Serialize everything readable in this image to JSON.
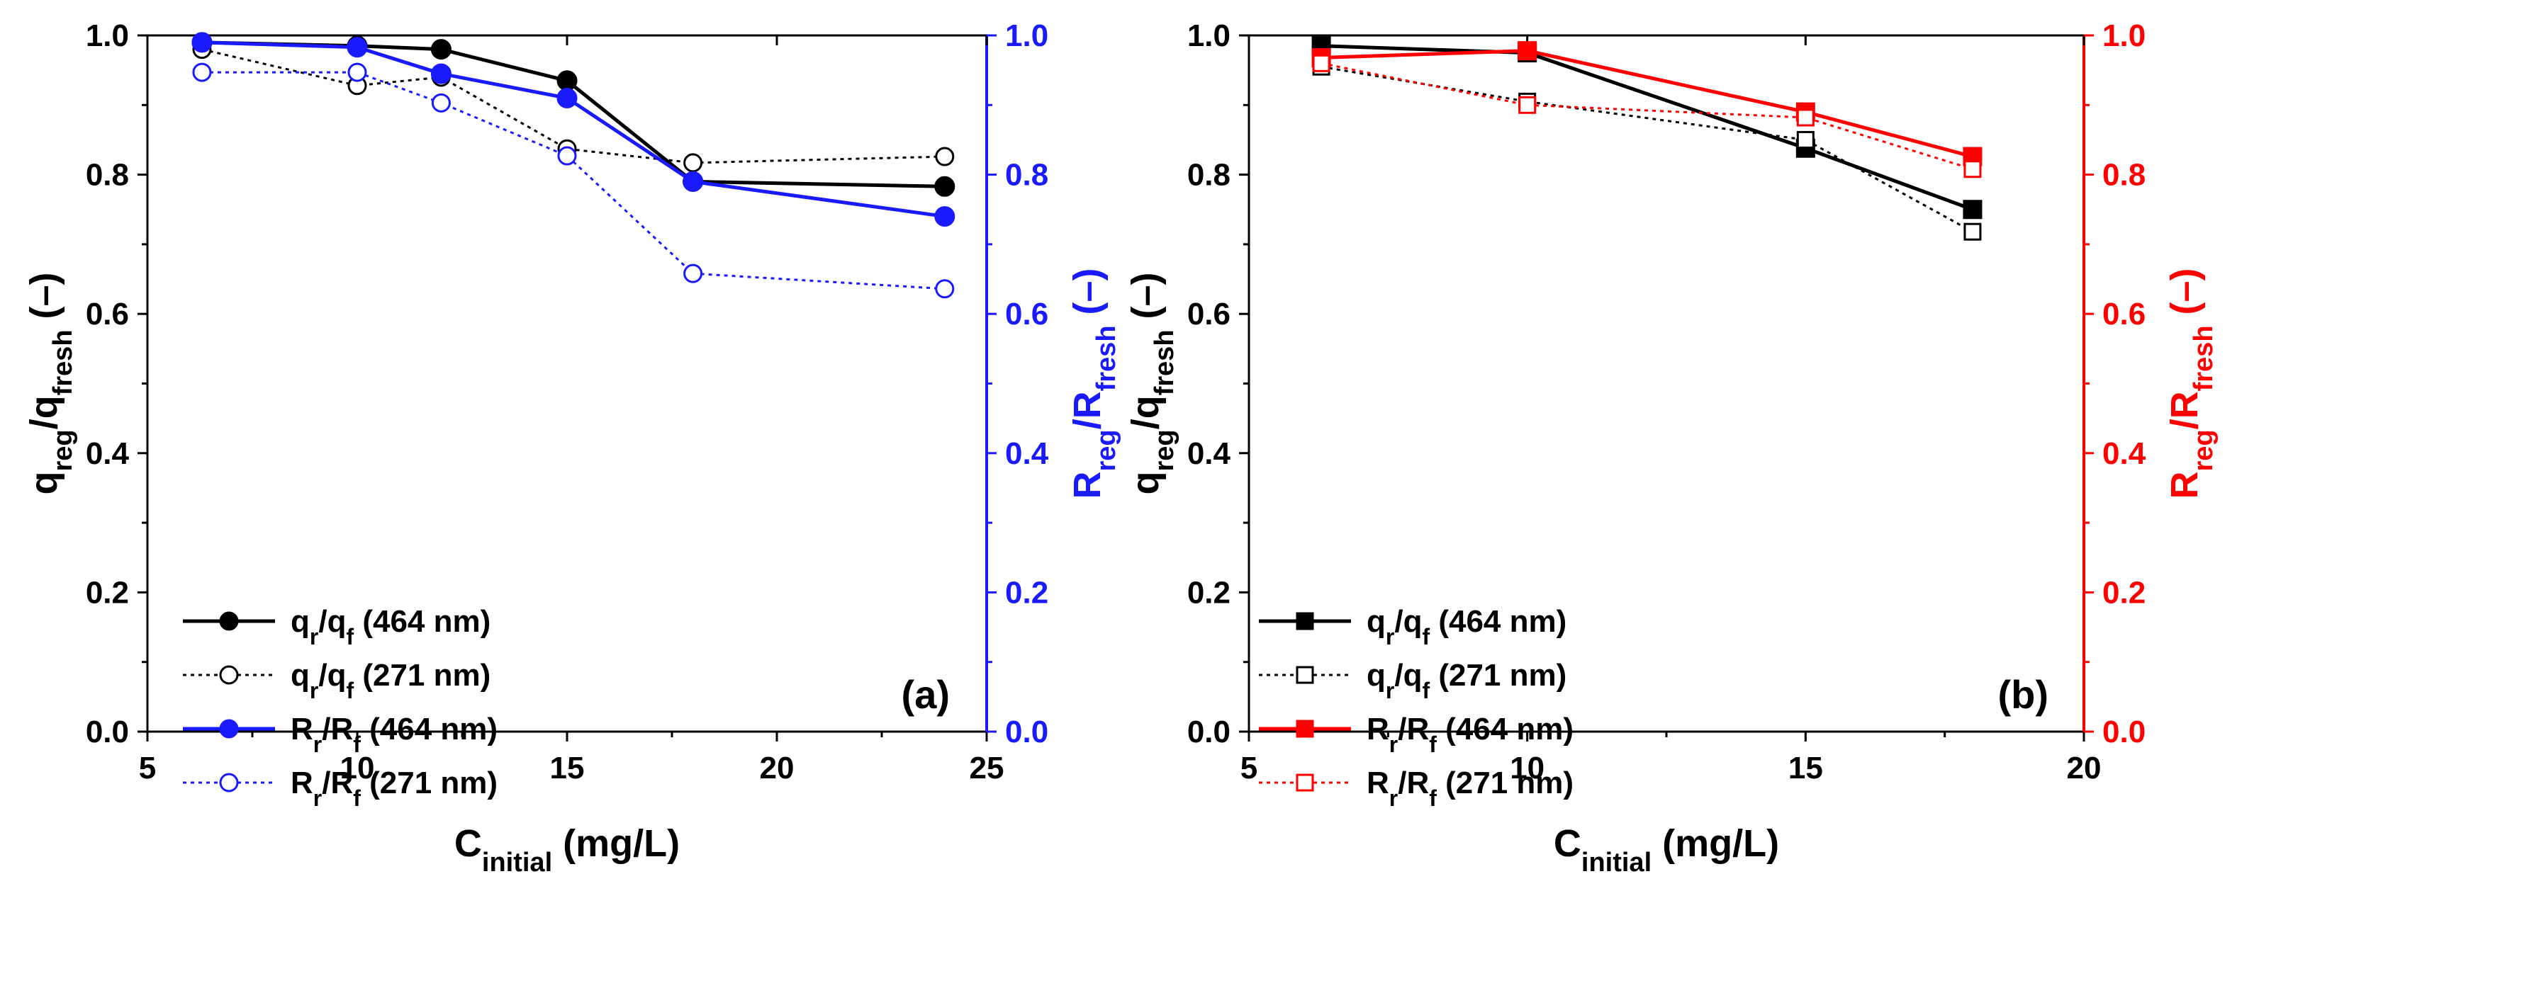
{
  "figure_caption_note": "",
  "chart_data": [
    {
      "panel": "a",
      "type": "line",
      "tag": "(a)",
      "x": [
        6.3,
        10,
        12,
        15,
        18,
        24
      ],
      "xlim": [
        5,
        25
      ],
      "xticks": [
        5,
        10,
        15,
        20,
        25
      ],
      "xlabel": {
        "main": "C",
        "sub": "initial",
        "unit": " (mg/L)"
      },
      "ylim": [
        0,
        1.0
      ],
      "yticks": [
        "0.0",
        "0.2",
        "0.4",
        "0.6",
        "0.8",
        "1.0"
      ],
      "ylabel_left": {
        "a": "q",
        "asub": "reg",
        "mid": "/q",
        "bsub": "fresh",
        "tail": " (–)"
      },
      "ylabel_right": {
        "a": "R",
        "asub": "reg",
        "mid": "/R",
        "bsub": "fresh",
        "tail": " (–)"
      },
      "right_axis_color": "#1a1aff",
      "series": [
        {
          "name": "q_r/q_f (464 nm)",
          "lab": {
            "a": "q",
            "asub": "r",
            "mid": "/q",
            "bsub": "f",
            "tail": " (464 nm)"
          },
          "color": "#000000",
          "marker": "circle",
          "filled": true,
          "dashed": false,
          "values": [
            0.99,
            0.985,
            0.98,
            0.935,
            0.79,
            0.783
          ]
        },
        {
          "name": "q_r/q_f (271 nm)",
          "lab": {
            "a": "q",
            "asub": "r",
            "mid": "/q",
            "bsub": "f",
            "tail": " (271 nm)"
          },
          "color": "#000000",
          "marker": "circle",
          "filled": false,
          "dashed": true,
          "values": [
            0.98,
            0.928,
            0.94,
            0.837,
            0.817,
            0.826
          ]
        },
        {
          "name": "R_r/R_f (464 nm)",
          "lab": {
            "a": "R",
            "asub": "r",
            "mid": "/R",
            "bsub": "f",
            "tail": " (464 nm)"
          },
          "color": "#1a1aff",
          "marker": "circle",
          "filled": true,
          "dashed": false,
          "values": [
            0.99,
            0.983,
            0.945,
            0.91,
            0.79,
            0.74
          ]
        },
        {
          "name": "R_r/R_f (271 nm)",
          "lab": {
            "a": "R",
            "asub": "r",
            "mid": "/R",
            "bsub": "f",
            "tail": " (271 nm)"
          },
          "color": "#1a1aff",
          "marker": "circle",
          "filled": false,
          "dashed": true,
          "values": [
            0.947,
            0.947,
            0.903,
            0.827,
            0.658,
            0.636
          ]
        }
      ]
    },
    {
      "panel": "b",
      "type": "line",
      "tag": "(b)",
      "x": [
        6.3,
        10,
        15,
        18
      ],
      "xlim": [
        5,
        20
      ],
      "xticks": [
        5,
        10,
        15,
        20
      ],
      "xlabel": {
        "main": "C",
        "sub": "initial",
        "unit": " (mg/L)"
      },
      "ylim": [
        0,
        1.0
      ],
      "yticks": [
        "0.0",
        "0.2",
        "0.4",
        "0.6",
        "0.8",
        "1.0"
      ],
      "ylabel_left": {
        "a": "q",
        "asub": "reg",
        "mid": "/q",
        "bsub": "fresh",
        "tail": " (–)"
      },
      "ylabel_right": {
        "a": "R",
        "asub": "reg",
        "mid": "/R",
        "bsub": "fresh",
        "tail": " (–)"
      },
      "right_axis_color": "#ff0000",
      "series": [
        {
          "name": "q_r/q_f (464 nm)",
          "lab": {
            "a": "q",
            "asub": "r",
            "mid": "/q",
            "bsub": "f",
            "tail": " (464 nm)"
          },
          "color": "#000000",
          "marker": "square",
          "filled": true,
          "dashed": false,
          "values": [
            0.985,
            0.975,
            0.838,
            0.75
          ]
        },
        {
          "name": "q_r/q_f (271 nm)",
          "lab": {
            "a": "q",
            "asub": "r",
            "mid": "/q",
            "bsub": "f",
            "tail": " (271 nm)"
          },
          "color": "#000000",
          "marker": "square",
          "filled": false,
          "dashed": true,
          "values": [
            0.955,
            0.905,
            0.85,
            0.718
          ]
        },
        {
          "name": "R_r/R_f (464 nm)",
          "lab": {
            "a": "R",
            "asub": "r",
            "mid": "/R",
            "bsub": "f",
            "tail": " (464 nm)"
          },
          "color": "#ff0000",
          "marker": "square",
          "filled": true,
          "dashed": false,
          "values": [
            0.968,
            0.978,
            0.89,
            0.826
          ]
        },
        {
          "name": "R_r/R_f (271 nm)",
          "lab": {
            "a": "R",
            "asub": "r",
            "mid": "/R",
            "bsub": "f",
            "tail": " (271 nm)"
          },
          "color": "#ff0000",
          "marker": "square",
          "filled": false,
          "dashed": true,
          "values": [
            0.96,
            0.9,
            0.882,
            0.808
          ]
        }
      ]
    }
  ]
}
